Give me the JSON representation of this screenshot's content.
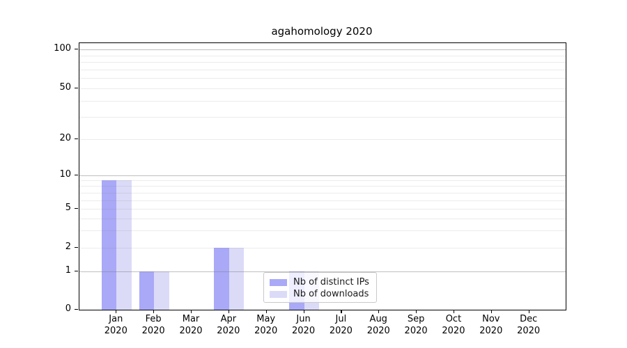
{
  "title": "agahomology 2020",
  "legend": {
    "items": [
      {
        "label": "Nb of distinct IPs",
        "color": "#a9a9f7"
      },
      {
        "label": "Nb of downloads",
        "color": "#dbdbf8"
      }
    ]
  },
  "chart_data": {
    "type": "bar",
    "title": "agahomology 2020",
    "categories": [
      "Jan 2020",
      "Feb 2020",
      "Mar 2020",
      "Apr 2020",
      "May 2020",
      "Jun 2020",
      "Jul 2020",
      "Aug 2020",
      "Sep 2020",
      "Oct 2020",
      "Nov 2020",
      "Dec 2020"
    ],
    "series": [
      {
        "name": "Nb of distinct IPs",
        "color": "#a9a9f7",
        "values": [
          9,
          1,
          0,
          2,
          0,
          1,
          0,
          0,
          0,
          0,
          0,
          0
        ]
      },
      {
        "name": "Nb of downloads",
        "color": "#dbdbf8",
        "values": [
          9,
          1,
          0,
          2,
          0,
          1,
          0,
          0,
          0,
          0,
          0,
          0
        ]
      }
    ],
    "xlabel": "",
    "ylabel": "",
    "yscale": "symlog",
    "ylim": [
      0,
      110
    ],
    "y_ticks": [
      0,
      1,
      2,
      5,
      10,
      20,
      50,
      100
    ],
    "y_major_gridlines": [
      1,
      10,
      100
    ],
    "y_minor_gridlines": [
      2,
      3,
      4,
      5,
      6,
      7,
      8,
      9,
      20,
      30,
      40,
      50,
      60,
      70,
      80,
      90
    ],
    "grid": true,
    "legend_position": "lower center"
  }
}
